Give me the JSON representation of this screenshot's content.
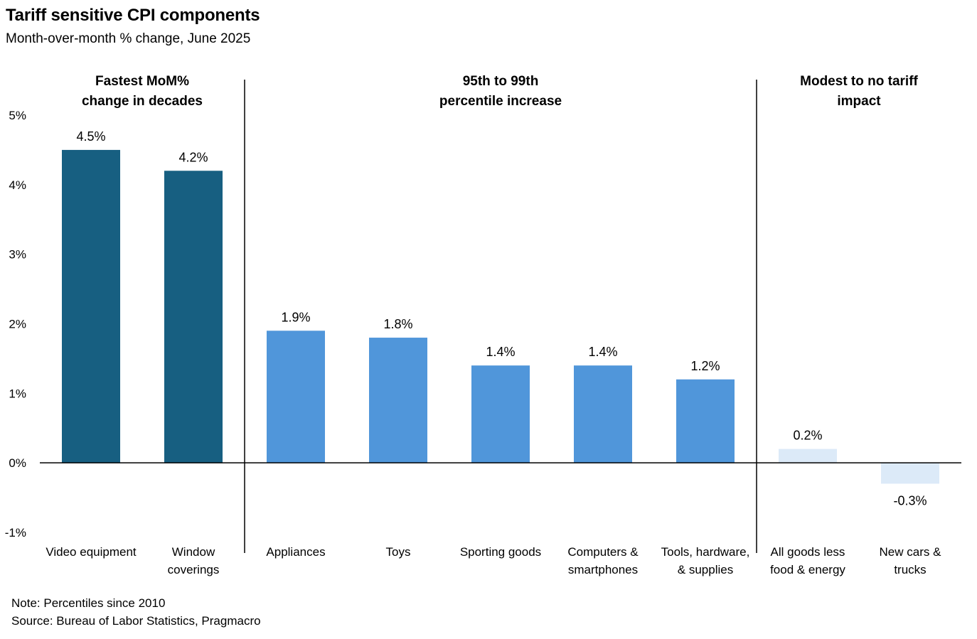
{
  "title": "Tariff sensitive CPI components",
  "subtitle": "Month-over-month % change, June 2025",
  "note": "Note: Percentiles since 2010",
  "source": "Source: Bureau of Labor Statistics, Pragmacro",
  "chart_data": {
    "type": "bar",
    "title": "Tariff sensitive CPI components",
    "subtitle": "Month-over-month % change, June 2025",
    "xlabel": "",
    "ylabel": "",
    "ylim": [
      -1,
      5
    ],
    "yticks": [
      5,
      4,
      3,
      2,
      1,
      0,
      -1
    ],
    "ytick_labels": [
      "5%",
      "4%",
      "3%",
      "2%",
      "1%",
      "0%",
      "-1%"
    ],
    "categories": [
      [
        "Video equipment"
      ],
      [
        "Window",
        "coverings"
      ],
      [
        "Appliances"
      ],
      [
        "Toys"
      ],
      [
        "Sporting goods"
      ],
      [
        "Computers &",
        "smartphones"
      ],
      [
        "Tools, hardware,",
        "& supplies"
      ],
      [
        "All goods less",
        "food & energy"
      ],
      [
        "New cars &",
        "trucks"
      ]
    ],
    "values": [
      4.5,
      4.2,
      1.9,
      1.8,
      1.4,
      1.4,
      1.2,
      0.2,
      -0.3
    ],
    "value_labels": [
      "4.5%",
      "4.2%",
      "1.9%",
      "1.8%",
      "1.4%",
      "1.4%",
      "1.2%",
      "0.2%",
      "-0.3%"
    ],
    "groups": [
      {
        "label": [
          "Fastest MoM%",
          "change in decades"
        ],
        "start": 0,
        "end": 1,
        "color": "#175f81"
      },
      {
        "label": [
          "95th to 99th",
          "percentile increase"
        ],
        "start": 2,
        "end": 6,
        "color": "#5096da"
      },
      {
        "label": [
          "Modest to no tariff",
          "impact"
        ],
        "start": 7,
        "end": 8,
        "color": "#dceaf8"
      }
    ],
    "grid": false,
    "legend": "none"
  }
}
